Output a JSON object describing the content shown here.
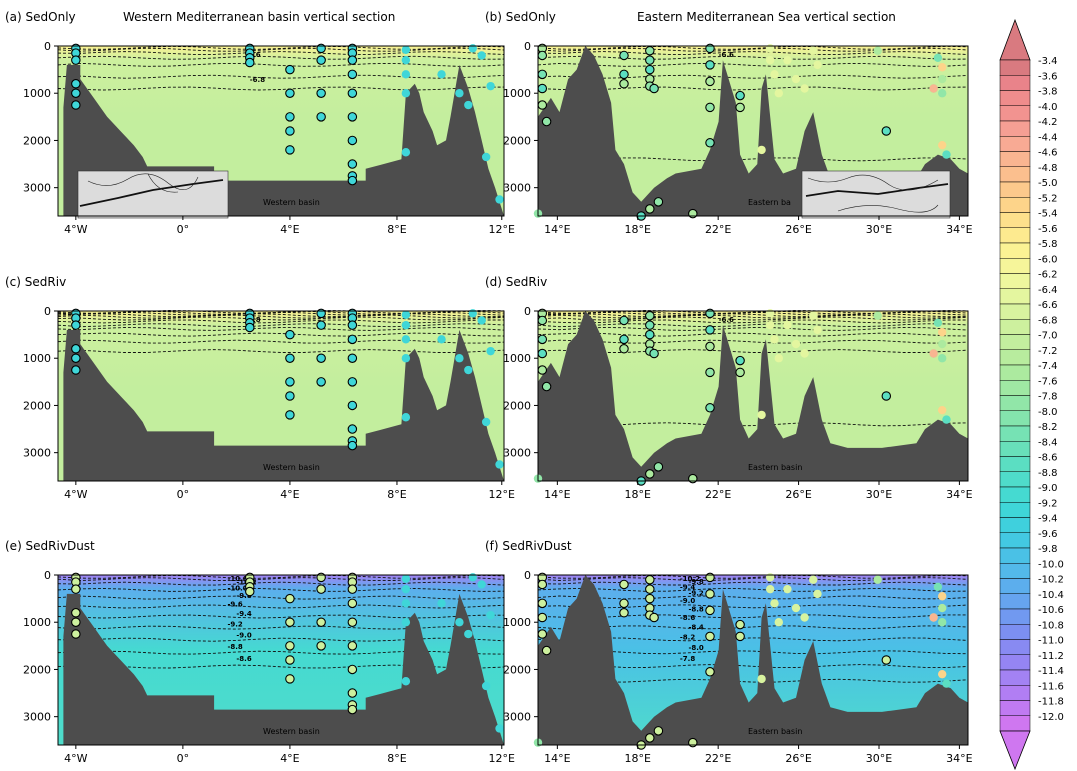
{
  "panels": [
    {
      "id": "a",
      "label": "(a) SedOnly",
      "title": "Western Mediterranean basin vertical section",
      "basin_label": "Western basin",
      "basin": "west",
      "scenario": "sedonly",
      "contour_labels": [
        "-6.6",
        "-6.8"
      ]
    },
    {
      "id": "b",
      "label": "(b) SedOnly",
      "title": "Eastern Mediterranean Sea vertical section",
      "basin_label": "Eastern ba",
      "basin": "east",
      "scenario": "sedonly",
      "contour_labels": [
        "-6.6"
      ]
    },
    {
      "id": "c",
      "label": "(c) SedRiv",
      "title": "",
      "basin_label": "Western basin",
      "basin": "west",
      "scenario": "sedriv",
      "contour_labels": [
        "-6.8"
      ]
    },
    {
      "id": "d",
      "label": "(d) SedRiv",
      "title": "",
      "basin_label": "Eastern basin",
      "basin": "east",
      "scenario": "sedriv",
      "contour_labels": [
        "-6.6"
      ]
    },
    {
      "id": "e",
      "label": "(e) SedRivDust",
      "title": "",
      "basin_label": "Western basin",
      "basin": "west",
      "scenario": "dust",
      "contour_labels": [
        "-10.6",
        "-10.2",
        "-10.0",
        "-9.8",
        "-9.6",
        "-9.4",
        "-9.2",
        "-9.0",
        "-8.8",
        "-8.6"
      ]
    },
    {
      "id": "f",
      "label": "(f) SedRivDust",
      "title": "",
      "basin_label": "Eastern basin",
      "basin": "east",
      "scenario": "dust",
      "contour_labels": [
        "-10.2",
        "-9.8",
        "-9.4",
        "-9.2",
        "-9.0",
        "-8.8",
        "-8.6",
        "-8.4",
        "-8.2",
        "-8.0",
        "-7.8"
      ]
    }
  ],
  "west_x_ticks": [
    "4°W",
    "0°",
    "4°E",
    "8°E",
    "12°E"
  ],
  "east_x_ticks": [
    "14°E",
    "18°E",
    "22°E",
    "26°E",
    "30°E",
    "34°E"
  ],
  "y_ticks": [
    "0",
    "1000",
    "2000",
    "3000"
  ],
  "colorbar": {
    "labels": [
      "-3.4",
      "-3.6",
      "-3.8",
      "-4.0",
      "-4.2",
      "-4.4",
      "-4.6",
      "-4.8",
      "-5.0",
      "-5.2",
      "-5.4",
      "-5.6",
      "-5.8",
      "-6.0",
      "-6.2",
      "-6.4",
      "-6.6",
      "-6.8",
      "-7.0",
      "-7.2",
      "-7.4",
      "-7.6",
      "-7.8",
      "-8.0",
      "-8.2",
      "-8.4",
      "-8.6",
      "-8.8",
      "-9.0",
      "-9.2",
      "-9.4",
      "-9.6",
      "-9.8",
      "-10.0",
      "-10.2",
      "-10.4",
      "-10.6",
      "-10.8",
      "-11.0",
      "-11.2",
      "-11.4",
      "-11.6",
      "-11.8",
      "-12.0"
    ],
    "colors": [
      "#d97a80",
      "#e9838a",
      "#ef8c8c",
      "#f29390",
      "#f59f94",
      "#f8aa94",
      "#f9b591",
      "#fbbf8e",
      "#fcc98c",
      "#fdd48a",
      "#fde08c",
      "#fdea8f",
      "#fbf294",
      "#f6f59a",
      "#eef79e",
      "#e4f69f",
      "#d8f39f",
      "#cdf09e",
      "#c3ee9e",
      "#b8ec9e",
      "#acea9f",
      "#9fe8a3",
      "#91e6a8",
      "#84e4ad",
      "#76e2b4",
      "#68e0ba",
      "#5bdec2",
      "#4fdcca",
      "#45dad1",
      "#3fd6d8",
      "#3fd0dd",
      "#43c9e2",
      "#4ac1e6",
      "#53b9ea",
      "#5caeed",
      "#66a4ef",
      "#7199f0",
      "#7c8ff1",
      "#888af2",
      "#9585f3",
      "#a382f3",
      "#b17ef3",
      "#c07af2",
      "#cf77f0"
    ],
    "top_triangle_color": "#d97a80",
    "bottom_triangle_color": "#cf77f0"
  },
  "chart_data": {
    "type": "heatmap",
    "variable_scale": [
      -12.0,
      -3.4
    ],
    "panels": [
      {
        "panel": "a",
        "x_range": [
          "4°W",
          "12°E"
        ],
        "ylim": [
          0,
          3600
        ],
        "y_reversed": true,
        "background_level": -6.9
      },
      {
        "panel": "b",
        "x_range": [
          "13°E",
          "35°E"
        ],
        "ylim": [
          0,
          3600
        ],
        "y_reversed": true,
        "background_level": -6.9
      },
      {
        "panel": "c",
        "x_range": [
          "4°W",
          "12°E"
        ],
        "ylim": [
          0,
          3600
        ],
        "y_reversed": true,
        "background_level": -6.9
      },
      {
        "panel": "d",
        "x_range": [
          "13°E",
          "35°E"
        ],
        "ylim": [
          0,
          3600
        ],
        "y_reversed": true,
        "background_level": -6.9
      },
      {
        "panel": "e",
        "x_range": [
          "4°W",
          "12°E"
        ],
        "ylim": [
          0,
          3600
        ],
        "y_reversed": true,
        "background_level": -9.0
      },
      {
        "panel": "f",
        "x_range": [
          "13°E",
          "35°E"
        ],
        "ylim": [
          0,
          3600
        ],
        "y_reversed": true,
        "background_level": -9.8
      }
    ],
    "colors": {
      "land": "#4d4d4d",
      "inset": "#dcdcdc"
    }
  }
}
